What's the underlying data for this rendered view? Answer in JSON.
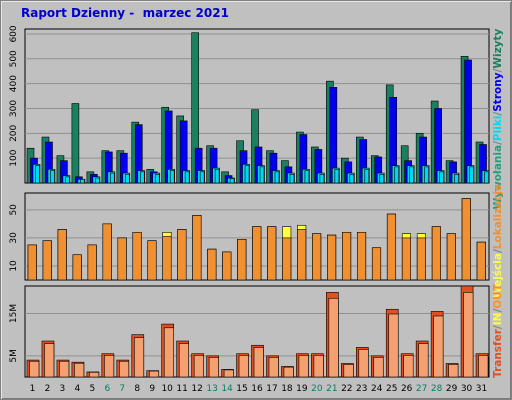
{
  "title": "Raport Dzienny -  marzec 2021",
  "colors": {
    "wizyty": "#1a8060",
    "strony": "#0000ee",
    "pliki": "#00d8f0",
    "wywolania": "#20a080",
    "kb_in": "#ffff40",
    "lokalizacje": "#f09030",
    "kb_out": "#ff9020",
    "transfer": "#e05020",
    "weekend_day": "#008060"
  },
  "chart_data": [
    {
      "type": "bar",
      "title": "",
      "y_ticks": [
        "100",
        "200",
        "300",
        "400",
        "500",
        "600"
      ],
      "ylim": [
        0,
        620
      ],
      "grid": true,
      "legend": "right-vertical",
      "legend_labels": [
        "Wywołania",
        "/",
        "Pliki",
        "/",
        "Strony",
        "/",
        "Wizyty"
      ],
      "categories": [
        "1",
        "2",
        "3",
        "4",
        "5",
        "6",
        "7",
        "8",
        "9",
        "10",
        "11",
        "12",
        "13",
        "14",
        "15",
        "16",
        "17",
        "18",
        "19",
        "20",
        "21",
        "22",
        "23",
        "24",
        "25",
        "26",
        "27",
        "28",
        "29",
        "30",
        "31"
      ],
      "series": [
        {
          "name": "Wywołania",
          "values": [
            140,
            185,
            110,
            320,
            45,
            130,
            130,
            245,
            55,
            305,
            270,
            605,
            150,
            45,
            170,
            295,
            130,
            90,
            205,
            145,
            410,
            100,
            185,
            110,
            395,
            150,
            200,
            330,
            90,
            510,
            165
          ]
        },
        {
          "name": "Pliki",
          "values": [
            100,
            165,
            90,
            25,
            35,
            125,
            120,
            235,
            45,
            290,
            250,
            140,
            140,
            30,
            130,
            145,
            120,
            65,
            195,
            135,
            385,
            85,
            175,
            105,
            345,
            90,
            185,
            300,
            85,
            495,
            155
          ]
        },
        {
          "name": "Strony",
          "values": [
            75,
            55,
            30,
            15,
            25,
            45,
            40,
            50,
            40,
            55,
            50,
            50,
            60,
            20,
            75,
            70,
            50,
            40,
            55,
            40,
            60,
            40,
            60,
            40,
            70,
            70,
            70,
            50,
            40,
            70,
            50
          ]
        },
        {
          "name": "Wizyty",
          "values": [
            70,
            50,
            25,
            15,
            20,
            40,
            35,
            45,
            35,
            50,
            45,
            45,
            55,
            18,
            70,
            65,
            45,
            35,
            50,
            35,
            55,
            35,
            55,
            35,
            65,
            65,
            65,
            45,
            35,
            65,
            45
          ]
        }
      ]
    },
    {
      "type": "bar",
      "title": "",
      "y_ticks": [
        "10",
        "30",
        "50"
      ],
      "ylim": [
        0,
        62
      ],
      "grid": true,
      "legend": "right-vertical",
      "legend_labels": [
        "Wejścia",
        "/",
        "Lokalizacje"
      ],
      "categories": [
        "1",
        "2",
        "3",
        "4",
        "5",
        "6",
        "7",
        "8",
        "9",
        "10",
        "11",
        "12",
        "13",
        "14",
        "15",
        "16",
        "17",
        "18",
        "19",
        "20",
        "21",
        "22",
        "23",
        "24",
        "25",
        "26",
        "27",
        "28",
        "29",
        "30",
        "31"
      ],
      "series": [
        {
          "name": "Wejścia",
          "values": [
            25,
            28,
            36,
            18,
            25,
            40,
            30,
            34,
            28,
            34,
            36,
            46,
            22,
            20,
            29,
            38,
            38,
            38,
            39,
            33,
            32,
            34,
            34,
            23,
            47,
            33,
            33,
            38,
            33,
            58,
            27
          ]
        },
        {
          "name": "Lokalizacje",
          "values": [
            25,
            28,
            36,
            18,
            25,
            40,
            30,
            34,
            28,
            31,
            36,
            46,
            22,
            20,
            29,
            38,
            38,
            30,
            36,
            33,
            32,
            34,
            34,
            23,
            47,
            30,
            30,
            38,
            33,
            58,
            27
          ]
        }
      ]
    },
    {
      "type": "bar",
      "title": "",
      "y_ticks": [
        "5M",
        "15M"
      ],
      "ylim": [
        0,
        21.5
      ],
      "grid": true,
      "legend": "right-vertical",
      "legend_labels": [
        "Transfer",
        "/",
        "IN",
        "/",
        "OUT"
      ],
      "categories": [
        "1",
        "2",
        "3",
        "4",
        "5",
        "6",
        "7",
        "8",
        "9",
        "10",
        "11",
        "12",
        "13",
        "14",
        "15",
        "16",
        "17",
        "18",
        "19",
        "20",
        "21",
        "22",
        "23",
        "24",
        "25",
        "26",
        "27",
        "28",
        "29",
        "30",
        "31"
      ],
      "series": [
        {
          "name": "Transfer",
          "values": [
            4,
            8.5,
            4,
            3.5,
            1.2,
            5.5,
            4,
            10,
            1.5,
            12.5,
            8.5,
            5.5,
            5,
            1.8,
            5.5,
            7.5,
            5,
            2.5,
            5.5,
            5.5,
            20,
            3.2,
            7,
            5,
            16,
            5.5,
            8.5,
            15.5,
            3.2,
            21.5,
            5.5
          ]
        }
      ]
    }
  ],
  "x_axis": {
    "labels": [
      "1",
      "2",
      "3",
      "4",
      "5",
      "6",
      "7",
      "8",
      "9",
      "10",
      "11",
      "12",
      "13",
      "14",
      "15",
      "16",
      "17",
      "18",
      "19",
      "20",
      "21",
      "22",
      "23",
      "24",
      "25",
      "26",
      "27",
      "28",
      "29",
      "30",
      "31"
    ],
    "weekend_days": [
      "6",
      "7",
      "13",
      "14",
      "20",
      "21",
      "27",
      "28"
    ]
  }
}
